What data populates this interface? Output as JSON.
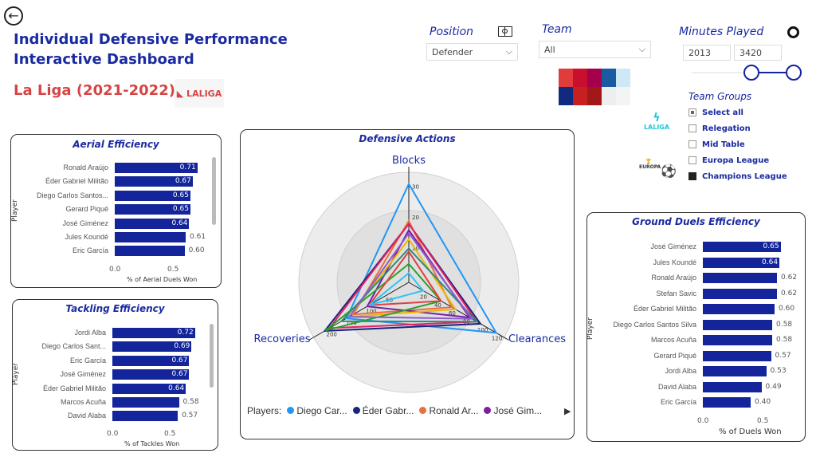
{
  "header": {
    "title_line1": "Individual Defensive Performance",
    "title_line2": "Interactive Dashboard",
    "league": "La Liga (2021-2022)",
    "laliga_logo": "LALIGA"
  },
  "filters": {
    "position": {
      "label": "Position",
      "value": "Defender"
    },
    "team": {
      "label": "Team",
      "value": "All"
    },
    "minutes": {
      "label": "Minutes Played",
      "min": "2013",
      "max": "3420",
      "range_fraction": [
        0.44,
        1.0
      ]
    },
    "team_groups": {
      "label": "Team Groups",
      "items": [
        {
          "label": "Select all",
          "state": "partial"
        },
        {
          "label": "Relegation",
          "state": "off"
        },
        {
          "label": "Mid Table",
          "state": "off"
        },
        {
          "label": "Europa League",
          "state": "off"
        },
        {
          "label": "Champions League",
          "state": "on"
        }
      ]
    }
  },
  "aerial": {
    "title": "Aerial Efficiency",
    "ylabel": "Player",
    "xlabel": "% of Aerial Duels Won",
    "ticks": [
      "0.0",
      "0.5"
    ],
    "rows": [
      {
        "name": "Ronald Araújo",
        "value": 0.71,
        "label": "0.71"
      },
      {
        "name": "Éder Gabriel Militão",
        "value": 0.67,
        "label": "0.67"
      },
      {
        "name": "Diego Carlos Santos...",
        "value": 0.65,
        "label": "0.65"
      },
      {
        "name": "Gerard Piqué",
        "value": 0.65,
        "label": "0.65"
      },
      {
        "name": "José Giménez",
        "value": 0.64,
        "label": "0.64"
      },
      {
        "name": "Jules Koundé",
        "value": 0.61,
        "label": "0.61"
      },
      {
        "name": "Eric García",
        "value": 0.6,
        "label": "0.60"
      }
    ]
  },
  "tackling": {
    "title": "Tackling Efficiency",
    "ylabel": "Player",
    "xlabel": "% of Tackles Won",
    "ticks": [
      "0.0",
      "0.5"
    ],
    "rows": [
      {
        "name": "Jordi Alba",
        "value": 0.72,
        "label": "0.72"
      },
      {
        "name": "Diego Carlos Sant...",
        "value": 0.69,
        "label": "0.69"
      },
      {
        "name": "Eric García",
        "value": 0.67,
        "label": "0.67"
      },
      {
        "name": "José Giménez",
        "value": 0.67,
        "label": "0.67"
      },
      {
        "name": "Éder Gabriel Militão",
        "value": 0.64,
        "label": "0.64"
      },
      {
        "name": "Marcos Acuña",
        "value": 0.58,
        "label": "0.58"
      },
      {
        "name": "David Alaba",
        "value": 0.57,
        "label": "0.57"
      }
    ]
  },
  "ground": {
    "title": "Ground Duels Efficiency",
    "ylabel": "Player",
    "xlabel": "% of Duels Won",
    "ticks": [
      "0.0",
      "0.5"
    ],
    "rows": [
      {
        "name": "José Giménez",
        "value": 0.65,
        "label": "0.65"
      },
      {
        "name": "Jules Koundé",
        "value": 0.64,
        "label": "0.64"
      },
      {
        "name": "Ronald Araújo",
        "value": 0.62,
        "label": "0.62"
      },
      {
        "name": "Stefan Savic",
        "value": 0.62,
        "label": "0.62"
      },
      {
        "name": "Éder Gabriel Militão",
        "value": 0.6,
        "label": "0.60"
      },
      {
        "name": "Diego Carlos Santos Silva",
        "value": 0.58,
        "label": "0.58"
      },
      {
        "name": "Marcos Acuña",
        "value": 0.58,
        "label": "0.58"
      },
      {
        "name": "Gerard Piqué",
        "value": 0.57,
        "label": "0.57"
      },
      {
        "name": "Jordi Alba",
        "value": 0.53,
        "label": "0.53"
      },
      {
        "name": "David Alaba",
        "value": 0.49,
        "label": "0.49"
      },
      {
        "name": "Eric García",
        "value": 0.4,
        "label": "0.40"
      }
    ]
  },
  "chart_data": {
    "type": "radar",
    "title": "Defensive Actions",
    "axes": [
      {
        "name": "Blocks",
        "max": 35,
        "ticks": [
          "10",
          "20",
          "30"
        ]
      },
      {
        "name": "Clearances",
        "max": 130,
        "ticks": [
          "20",
          "40",
          "60",
          "80",
          "100",
          "120"
        ]
      },
      {
        "name": "Recoveries",
        "max": 235,
        "ticks": [
          "50",
          "100",
          "150",
          "200"
        ]
      }
    ],
    "legend_title": "Players:",
    "legend": [
      {
        "name": "Diego Car...",
        "color": "#2196f3"
      },
      {
        "name": "Éder Gabr...",
        "color": "#1a237e"
      },
      {
        "name": "Ronald Ar...",
        "color": "#e8703a"
      },
      {
        "name": "José Gim...",
        "color": "#7b1fa2"
      }
    ],
    "series": [
      {
        "color": "#2196f3",
        "values": [
          32,
          122,
          157
        ]
      },
      {
        "color": "#1a237e",
        "values": [
          19,
          100,
          212
        ]
      },
      {
        "color": "#e8703a",
        "values": [
          20,
          60,
          140
        ]
      },
      {
        "color": "#7b1fa2",
        "values": [
          17,
          85,
          105
        ]
      },
      {
        "color": "#e91e63",
        "values": [
          19,
          95,
          200
        ]
      },
      {
        "color": "#f0b400",
        "values": [
          14,
          65,
          150
        ]
      },
      {
        "color": "#2e8b7a",
        "values": [
          11,
          95,
          170
        ]
      },
      {
        "color": "#2ca02c",
        "values": [
          6,
          45,
          210
        ]
      },
      {
        "color": "#e04040",
        "values": [
          10,
          45,
          100
        ]
      },
      {
        "color": "#29c5f6",
        "values": [
          3,
          20,
          100
        ]
      },
      {
        "color": "#8e5bd0",
        "values": [
          16,
          88,
          150
        ]
      }
    ]
  }
}
